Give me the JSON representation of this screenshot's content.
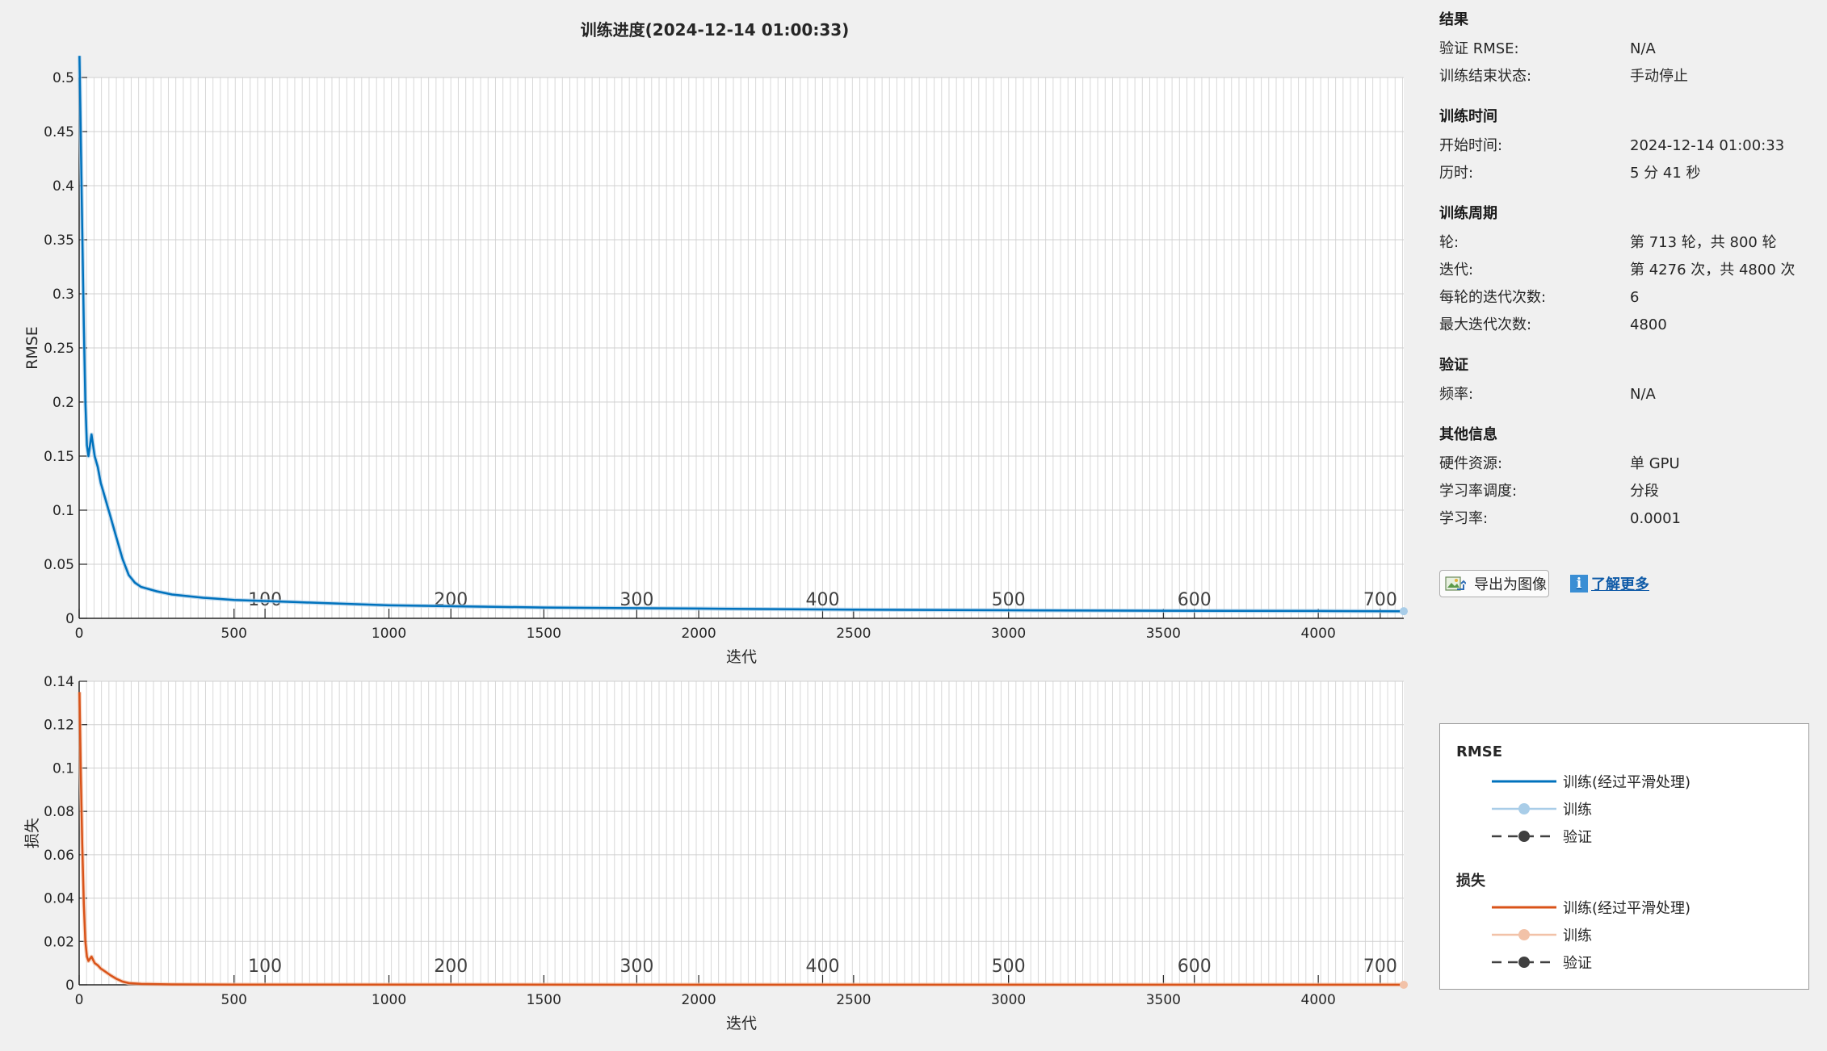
{
  "window": {
    "title": "训练进度(2024-12-14 01:00:33)"
  },
  "info": {
    "sections": [
      {
        "title": "结果",
        "rows": [
          {
            "k": "验证 RMSE:",
            "v": "N/A"
          },
          {
            "k": "训练结束状态:",
            "v": "手动停止"
          }
        ]
      },
      {
        "title": "训练时间",
        "rows": [
          {
            "k": "开始时间:",
            "v": "2024-12-14 01:00:33"
          },
          {
            "k": "历时:",
            "v": "5 分 41 秒"
          }
        ]
      },
      {
        "title": "训练周期",
        "rows": [
          {
            "k": "轮:",
            "v": "第 713 轮，共 800 轮"
          },
          {
            "k": "迭代:",
            "v": "第 4276 次，共 4800 次"
          },
          {
            "k": "每轮的迭代次数:",
            "v": "6"
          },
          {
            "k": "最大迭代次数:",
            "v": "4800"
          }
        ]
      },
      {
        "title": "验证",
        "rows": [
          {
            "k": "频率:",
            "v": "N/A"
          }
        ]
      },
      {
        "title": "其他信息",
        "rows": [
          {
            "k": "硬件资源:",
            "v": "单 GPU"
          },
          {
            "k": "学习率调度:",
            "v": "分段"
          },
          {
            "k": "学习率:",
            "v": "0.0001"
          }
        ]
      }
    ]
  },
  "buttons": {
    "export_label": "导出为图像",
    "learn_more_label": "了解更多",
    "info_glyph": "i"
  },
  "legend": {
    "rmse_title": "RMSE",
    "loss_title": "损失",
    "smoothed_label": "训练(经过平滑处理)",
    "train_label": "训练",
    "validation_label": "验证"
  },
  "colors": {
    "rmse_smoothed": "#0072bd",
    "rmse_raw": "#a9cde8",
    "loss_smoothed": "#d95319",
    "loss_raw": "#f2c2a8",
    "validation": "#404040"
  },
  "chart_data": [
    {
      "type": "line",
      "title": "训练进度(2024-12-14 01:00:33)",
      "xlabel": "迭代",
      "ylabel": "RMSE",
      "xlim": [
        0,
        4276
      ],
      "ylim": [
        0,
        0.5
      ],
      "xticks": [
        0,
        500,
        1000,
        1500,
        2000,
        2500,
        3000,
        3500,
        4000
      ],
      "yticks": [
        0,
        0.05,
        0.1,
        0.15,
        0.2,
        0.25,
        0.3,
        0.35,
        0.4,
        0.45,
        0.5
      ],
      "ytick_labels": [
        "0",
        "0.05",
        "0.1",
        "0.15",
        "0.2",
        "0.25",
        "0.3",
        "0.35",
        "0.4",
        "0.45",
        "0.5"
      ],
      "epoch_markers": [
        100,
        200,
        300,
        400,
        500,
        600,
        700
      ],
      "iterations_per_epoch": 6,
      "grid": true,
      "series": [
        {
          "name": "训练(经过平滑处理)",
          "x": [
            1,
            5,
            10,
            15,
            20,
            25,
            30,
            40,
            50,
            60,
            70,
            80,
            100,
            120,
            140,
            160,
            180,
            200,
            250,
            300,
            400,
            500,
            700,
            1000,
            1500,
            2000,
            2500,
            3000,
            3500,
            4000,
            4276
          ],
          "y": [
            0.52,
            0.45,
            0.36,
            0.27,
            0.2,
            0.16,
            0.15,
            0.17,
            0.15,
            0.14,
            0.125,
            0.115,
            0.095,
            0.075,
            0.055,
            0.04,
            0.033,
            0.029,
            0.025,
            0.022,
            0.019,
            0.017,
            0.015,
            0.012,
            0.01,
            0.009,
            0.008,
            0.0075,
            0.007,
            0.0068,
            0.0066
          ]
        }
      ]
    },
    {
      "type": "line",
      "xlabel": "迭代",
      "ylabel": "损失",
      "xlim": [
        0,
        4276
      ],
      "ylim": [
        0,
        0.14
      ],
      "xticks": [
        0,
        500,
        1000,
        1500,
        2000,
        2500,
        3000,
        3500,
        4000
      ],
      "yticks": [
        0,
        0.02,
        0.04,
        0.06,
        0.08,
        0.1,
        0.12,
        0.14
      ],
      "ytick_labels": [
        "0",
        "0.02",
        "0.04",
        "0.06",
        "0.08",
        "0.1",
        "0.12",
        "0.14"
      ],
      "epoch_markers": [
        100,
        200,
        300,
        400,
        500,
        600,
        700
      ],
      "iterations_per_epoch": 6,
      "grid": true,
      "series": [
        {
          "name": "训练(经过平滑处理)",
          "x": [
            1,
            5,
            10,
            15,
            20,
            25,
            30,
            40,
            50,
            60,
            70,
            80,
            100,
            120,
            140,
            160,
            200,
            300,
            500,
            1000,
            2000,
            3000,
            4000,
            4276
          ],
          "y": [
            0.135,
            0.1,
            0.065,
            0.037,
            0.02,
            0.013,
            0.011,
            0.013,
            0.01,
            0.009,
            0.0075,
            0.0065,
            0.0045,
            0.0028,
            0.0015,
            0.0008,
            0.0004,
            0.0002,
            0.0001,
            0.0001,
            5e-05,
            3e-05,
            2e-05,
            2e-05
          ]
        }
      ]
    }
  ]
}
